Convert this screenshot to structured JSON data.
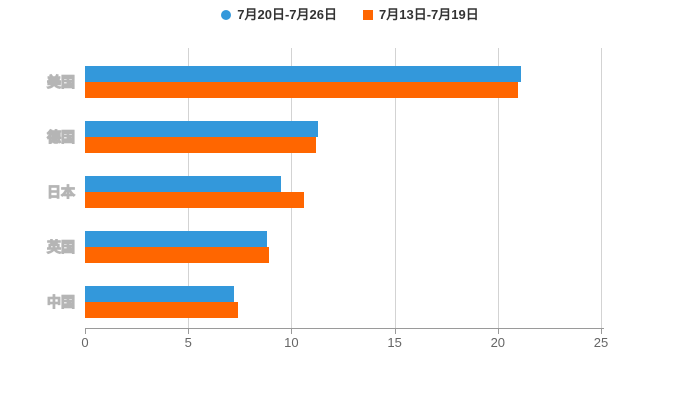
{
  "legend": {
    "series1": {
      "label": "7月20日-7月26日",
      "color": "#3398db",
      "marker": "circle"
    },
    "series2": {
      "label": "7月13日-7月19日",
      "color": "#ff6600",
      "marker": "square"
    }
  },
  "chart_data": {
    "type": "bar",
    "orientation": "horizontal",
    "title": "",
    "xlabel": "",
    "ylabel": "",
    "categories": [
      "美国",
      "德国",
      "日本",
      "英国",
      "中国"
    ],
    "series": [
      {
        "name": "7月20日-7月26日",
        "color": "#3398db",
        "values": [
          21.1,
          11.3,
          9.5,
          8.8,
          7.2
        ]
      },
      {
        "name": "7月13日-7月19日",
        "color": "#ff6600",
        "values": [
          21.0,
          11.2,
          10.6,
          8.9,
          7.4
        ]
      }
    ],
    "xlim": [
      0,
      25
    ],
    "x_ticks": [
      0,
      5,
      10,
      15,
      20,
      25
    ],
    "x_tick_labels": [
      "0",
      "5",
      "10",
      "15",
      "20",
      "25"
    ],
    "grid": true,
    "legend_position": "top",
    "gridline_color": "#d3d3d3",
    "axis_line_color": "#9a9a9a",
    "tick_label_color": "#666666"
  }
}
